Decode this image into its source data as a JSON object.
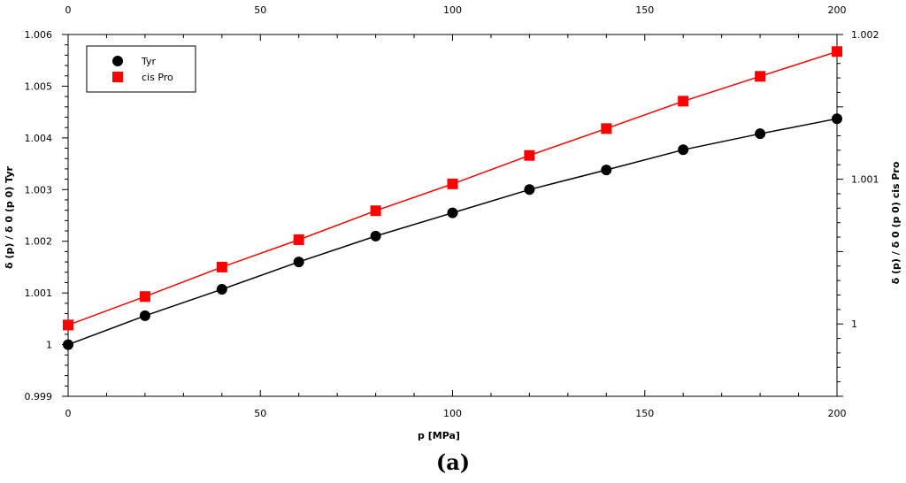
{
  "chart_data": {
    "type": "scatter",
    "xlabel": "p [MPa]",
    "ylabel_left": "δ (p) / δ 0 (p 0) Tyr",
    "ylabel_right": "δ (p) / δ 0 (p 0) cis Pro",
    "xlim": [
      0,
      200
    ],
    "ylim_left": [
      0.999,
      1.006
    ],
    "ylim_right": [
      0.9995,
      1.002
    ],
    "x_ticks": [
      "0",
      "50",
      "100",
      "150",
      "200"
    ],
    "y_left_ticks": [
      "0.999",
      "1",
      "1.001",
      "1.002",
      "1.003",
      "1.004",
      "1.005",
      "1.006"
    ],
    "y_right_ticks": [
      "1",
      "1.001",
      "1.002"
    ],
    "legend_position": "top-left",
    "grid": false,
    "series": [
      {
        "name": "Tyr",
        "axis": "left",
        "marker": "circle",
        "color": "#000000",
        "x": [
          0,
          20,
          40,
          60,
          80,
          100,
          120,
          140,
          160,
          180,
          200
        ],
        "y": [
          1.0,
          1.00056,
          1.00107,
          1.0016,
          1.0021,
          1.00255,
          1.003,
          1.00338,
          1.00377,
          1.00408,
          1.00437
        ]
      },
      {
        "name": "cis Pro",
        "axis": "left",
        "marker": "square",
        "color": "#ff0000",
        "x": [
          0,
          20,
          40,
          60,
          80,
          100,
          120,
          140,
          160,
          180,
          200
        ],
        "y": [
          1.00038,
          1.00093,
          1.0015,
          1.00203,
          1.00259,
          1.00311,
          1.00366,
          1.00418,
          1.00471,
          1.00519,
          1.00567
        ]
      }
    ]
  },
  "caption": "(a)"
}
